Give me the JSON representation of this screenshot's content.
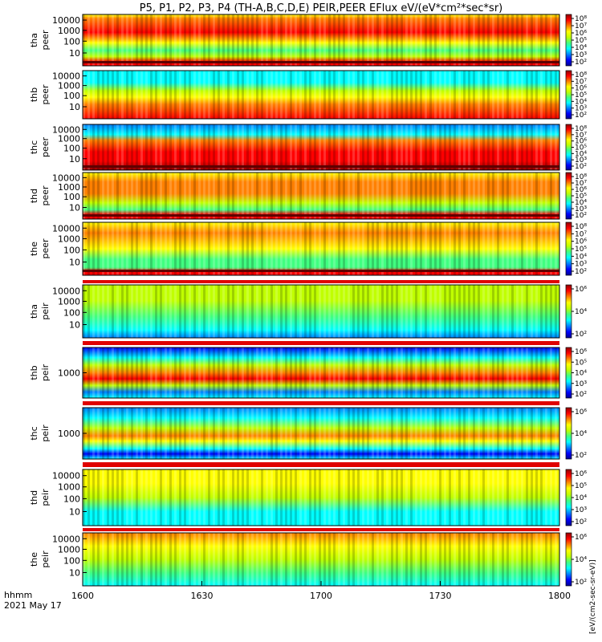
{
  "figure": {
    "title": "P5, P1, P2, P3, P4 (TH-A,B,C,D,E) PEIR,PEER EFlux eV/(eV*cm²*sec*sr)",
    "footer_line1": "hhmm",
    "footer_line2": "2021 May 17"
  },
  "colorbar_unit": "[eV/(cm2-sec-sr-eV)]",
  "chart_data": {
    "type": "heatmap",
    "title": "P5, P1, P2, P3, P4 (TH-A,B,C,D,E) PEIR,PEER EFlux eV/(eV*cm²*sec*sr)",
    "x_ticks": [
      "1600",
      "1630",
      "1700",
      "1730",
      "1800"
    ],
    "x_label": "hhmm 2021 May 17",
    "panels": [
      {
        "probe": "tha",
        "instrument": "peer",
        "y_ticks": [
          "10000",
          "1000",
          "100",
          "10"
        ],
        "y_scale": "log",
        "colorbar_ticks": [
          "10⁸",
          "10⁷",
          "10⁶",
          "10⁵",
          "10⁴",
          "10³",
          "10²"
        ]
      },
      {
        "probe": "thb",
        "instrument": "peer",
        "y_ticks": [
          "10000",
          "1000",
          "100",
          "10"
        ],
        "y_scale": "log",
        "colorbar_ticks": [
          "10⁸",
          "10⁷",
          "10⁶",
          "10⁵",
          "10⁴",
          "10³",
          "10²"
        ]
      },
      {
        "probe": "thc",
        "instrument": "peer",
        "y_ticks": [
          "10000",
          "1000",
          "100",
          "10"
        ],
        "y_scale": "log",
        "colorbar_ticks": [
          "10⁸",
          "10⁷",
          "10⁶",
          "10⁵",
          "10⁴",
          "10³",
          "10²"
        ]
      },
      {
        "probe": "thd",
        "instrument": "peer",
        "y_ticks": [
          "10000",
          "1000",
          "100",
          "10"
        ],
        "y_scale": "log",
        "colorbar_ticks": [
          "10⁸",
          "10⁷",
          "10⁶",
          "10⁵",
          "10⁴",
          "10³",
          "10²"
        ]
      },
      {
        "probe": "the",
        "instrument": "peer",
        "y_ticks": [
          "10000",
          "1000",
          "100",
          "10"
        ],
        "y_scale": "log",
        "colorbar_ticks": [
          "10⁸",
          "10⁷",
          "10⁶",
          "10⁵",
          "10⁴",
          "10³",
          "10²"
        ]
      },
      {
        "probe": "tha",
        "instrument": "peir",
        "y_ticks": [
          "10000",
          "1000",
          "100",
          "10"
        ],
        "y_scale": "log",
        "colorbar_ticks": [
          "10⁶",
          "10⁴",
          "10²"
        ]
      },
      {
        "probe": "thb",
        "instrument": "peir",
        "y_ticks": [
          "1000"
        ],
        "y_scale": "log",
        "colorbar_ticks": [
          "10⁶",
          "10⁵",
          "10⁴",
          "10³",
          "10²"
        ]
      },
      {
        "probe": "thc",
        "instrument": "peir",
        "y_ticks": [
          "1000"
        ],
        "y_scale": "log",
        "colorbar_ticks": [
          "10⁶",
          "10⁴",
          "10²"
        ]
      },
      {
        "probe": "thd",
        "instrument": "peir",
        "y_ticks": [
          "10000",
          "1000",
          "100",
          "10"
        ],
        "y_scale": "log",
        "colorbar_ticks": [
          "10⁶",
          "10⁵",
          "10⁴",
          "10³",
          "10²"
        ]
      },
      {
        "probe": "the",
        "instrument": "peir",
        "y_ticks": [
          "10000",
          "1000",
          "100",
          "10"
        ],
        "y_scale": "log",
        "colorbar_ticks": [
          "10⁶",
          "10⁴",
          "10²"
        ]
      }
    ],
    "colormap": [
      "#000090",
      "#0000ff",
      "#0080ff",
      "#00ffff",
      "#40ff80",
      "#c0ff00",
      "#ffff00",
      "#ff8000",
      "#ff0000",
      "#900000"
    ]
  }
}
